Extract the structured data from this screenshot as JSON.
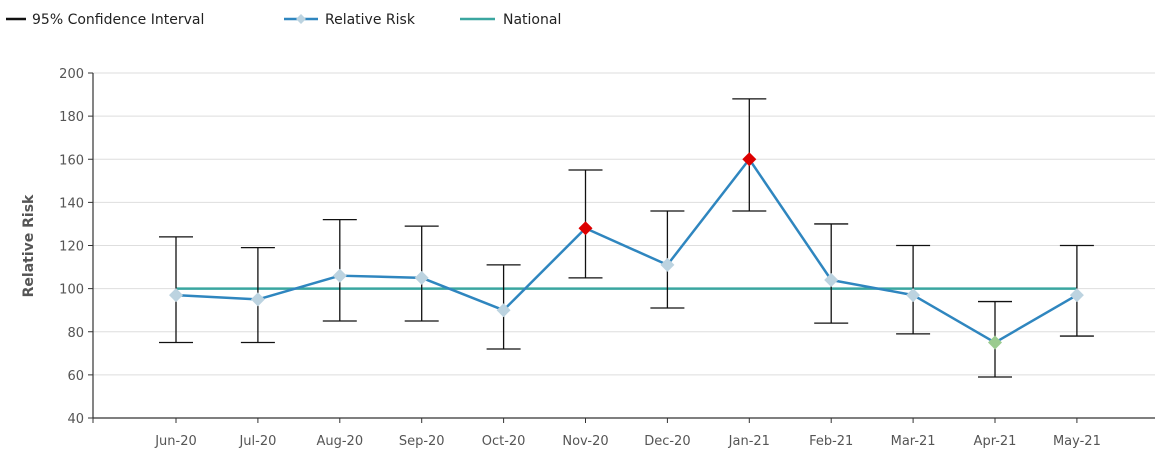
{
  "chart_data": {
    "type": "line",
    "categories": [
      "Jun-20",
      "Jul-20",
      "Aug-20",
      "Sep-20",
      "Oct-20",
      "Nov-20",
      "Dec-20",
      "Jan-21",
      "Feb-21",
      "Mar-21",
      "Apr-21",
      "May-21"
    ],
    "series": [
      {
        "name": "Relative Risk",
        "values": [
          97,
          95,
          106,
          105,
          90,
          128,
          111,
          160,
          104,
          97,
          75,
          97
        ],
        "marker_colors": [
          "#bcd3e0",
          "#bcd3e0",
          "#bcd3e0",
          "#bcd3e0",
          "#bcd3e0",
          "#dd0000",
          "#bcd3e0",
          "#dd0000",
          "#bcd3e0",
          "#bcd3e0",
          "#9bcb8f",
          "#bcd3e0"
        ],
        "color": "#2f86bf"
      },
      {
        "name": "National",
        "values": [
          100,
          100,
          100,
          100,
          100,
          100,
          100,
          100,
          100,
          100,
          100,
          100
        ],
        "color": "#3aa6a0"
      }
    ],
    "confidence_interval": {
      "name": "95% Confidence Interval",
      "lower": [
        75,
        75,
        85,
        85,
        72,
        105,
        91,
        136,
        84,
        79,
        59,
        78
      ],
      "upper": [
        124,
        119,
        132,
        129,
        111,
        155,
        136,
        188,
        130,
        120,
        94,
        120
      ],
      "color": "#111111"
    },
    "ylabel": "Relative Risk",
    "xlabel": "",
    "ylim": [
      40,
      200
    ],
    "yticks": [
      40,
      60,
      80,
      100,
      120,
      140,
      160,
      180,
      200
    ],
    "grid": true,
    "legend_position": "top-left"
  }
}
